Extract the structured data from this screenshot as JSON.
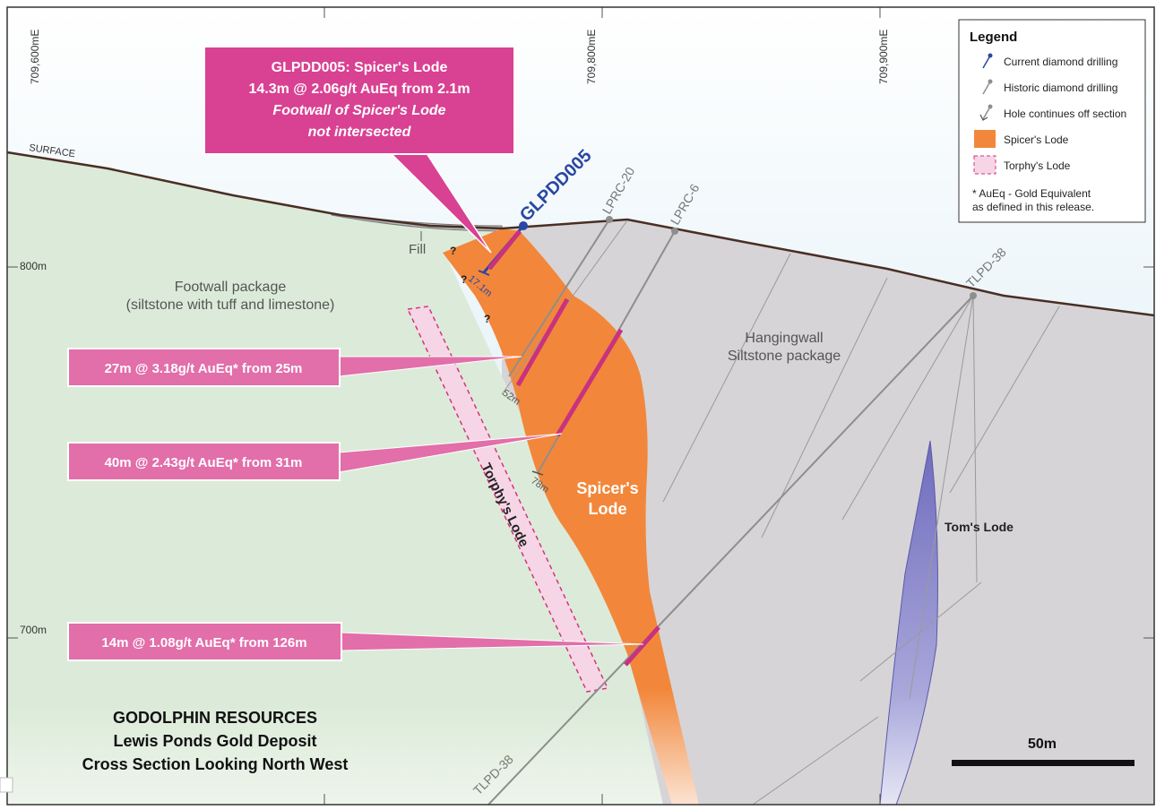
{
  "colors": {
    "sky_top": "#ffffff",
    "sky_bottom": "#cfe7f2",
    "footwall": "#dcebd9",
    "hangingwall": "#d6d4d6",
    "spicers_lode": "#f2873b",
    "torphys_lode": "#f6d6e6",
    "torphys_border": "#d6337a",
    "callout": "#e26eaa",
    "callout_main": "#d94192",
    "intercept": "#c8327f",
    "current_drill": "#2a47a3",
    "historic_drill": "#8e8e8e",
    "surface_line": "#4a2e24",
    "toms_lode": "#7c7bc2"
  },
  "grid": {
    "easting_labels": [
      "709,600mE",
      "709,800mE",
      "709,900mE"
    ],
    "rl_labels": [
      "800m",
      "700m"
    ]
  },
  "surface_label": "SURFACE",
  "fill_label": "Fill",
  "question_mark": "?",
  "zones": {
    "footwall": [
      "Footwall package",
      "(siltstone with tuff and limestone)"
    ],
    "hangingwall": [
      "Hangingwall",
      "Siltstone package"
    ],
    "spicers": [
      "Spicer's",
      "Lode"
    ],
    "torphys": "Torphy's Lode",
    "toms": "Tom's Lode"
  },
  "holes": {
    "current": "GLPDD005",
    "lprc20": "LPRC-20",
    "lprc6": "LPRC-6",
    "tlpd38": "TLPD-38",
    "tlpd38_bottom": "TLPD-38"
  },
  "depths": {
    "glpdd005": "17.1m",
    "lprc20": "52m",
    "lprc6": "78m"
  },
  "main_callout": {
    "line1": "GLPDD005: Spicer's Lode",
    "line2": "14.3m @ 2.06g/t AuEq from 2.1m",
    "line3": "Footwall of Spicer's Lode",
    "line4": "not intersected"
  },
  "intercepts": [
    "27m @  3.18g/t AuEq* from 25m",
    "40m @  2.43g/t AuEq* from 31m",
    "14m @  1.08g/t AuEq* from 126m"
  ],
  "legend": {
    "title": "Legend",
    "items": [
      "Current diamond drilling",
      "Historic diamond drilling",
      "Hole continues off section",
      "Spicer's Lode",
      "Torphy's Lode"
    ],
    "note_line1": "* AuEq - Gold Equivalent",
    "note_line2": "as defined in this release."
  },
  "title_block": {
    "line1": "GODOLPHIN RESOURCES",
    "line2": "Lewis Ponds Gold Deposit",
    "line3": "Cross Section Looking North West"
  },
  "scale_bar": "50m"
}
